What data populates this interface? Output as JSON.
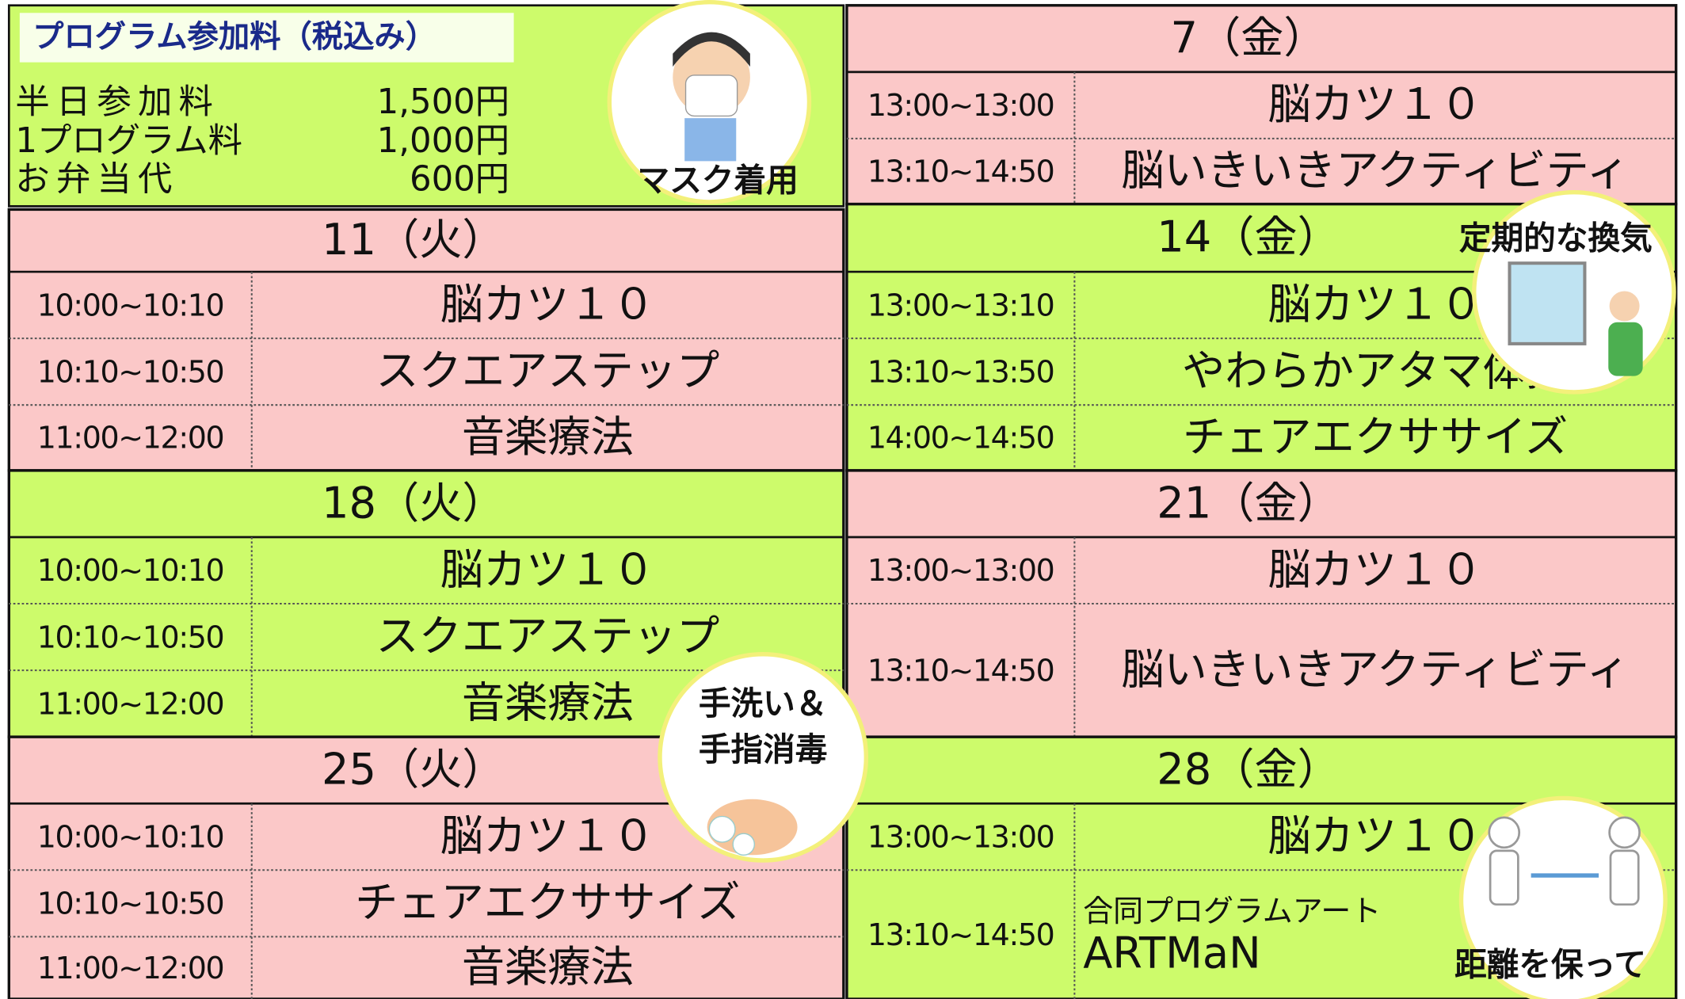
{
  "fees": {
    "title": "プログラム参加料（税込み）",
    "items": [
      {
        "label": "半日参加料",
        "price": "1,500円"
      },
      {
        "label": "1プログラム料",
        "price": "1,000円"
      },
      {
        "label": "お弁当代",
        "price": "600円"
      }
    ]
  },
  "badges": {
    "mask": "マスク着用",
    "ventilation": "定期的な換気",
    "handwash": [
      "手洗い＆",
      "手指消毒"
    ],
    "distance": "距離を保って"
  },
  "days": [
    {
      "label": "11（火）",
      "rows": [
        {
          "time": "10:00~10:10",
          "program": "脳カツ１０"
        },
        {
          "time": "10:10~10:50",
          "program": "スクエアステップ"
        },
        {
          "time": "11:00~12:00",
          "program": "音楽療法"
        }
      ]
    },
    {
      "label": "18（火）",
      "rows": [
        {
          "time": "10:00~10:10",
          "program": "脳カツ１０"
        },
        {
          "time": "10:10~10:50",
          "program": "スクエアステップ"
        },
        {
          "time": "11:00~12:00",
          "program": "音楽療法"
        }
      ]
    },
    {
      "label": "25（火）",
      "rows": [
        {
          "time": "10:00~10:10",
          "program": "脳カツ１０"
        },
        {
          "time": "10:10~10:50",
          "program": "チェアエクササイズ"
        },
        {
          "time": "11:00~12:00",
          "program": "音楽療法"
        }
      ]
    },
    {
      "label": "7（金）",
      "rows": [
        {
          "time": "13:00~13:00",
          "program": "脳カツ１０"
        },
        {
          "time": "13:10~14:50",
          "program": "脳いきいきアクティビティ"
        }
      ]
    },
    {
      "label": "14（金）",
      "rows": [
        {
          "time": "13:00~13:10",
          "program": "脳カツ１０"
        },
        {
          "time": "13:10~13:50",
          "program": "やわらかアタマ体操"
        },
        {
          "time": "14:00~14:50",
          "program": "チェアエクササイズ"
        }
      ]
    },
    {
      "label": "21（金）",
      "rows": [
        {
          "time": "13:00~13:00",
          "program": "脳カツ１０"
        },
        {
          "time": "13:10~14:50",
          "program": "脳いきいきアクティビティ"
        }
      ]
    },
    {
      "label": "28（金）",
      "rows": [
        {
          "time": "13:00~13:00",
          "program": "脳カツ１０"
        },
        {
          "time": "13:10~14:50",
          "subtitle": "合同プログラムアート",
          "program": "ARTMaN"
        }
      ]
    }
  ]
}
